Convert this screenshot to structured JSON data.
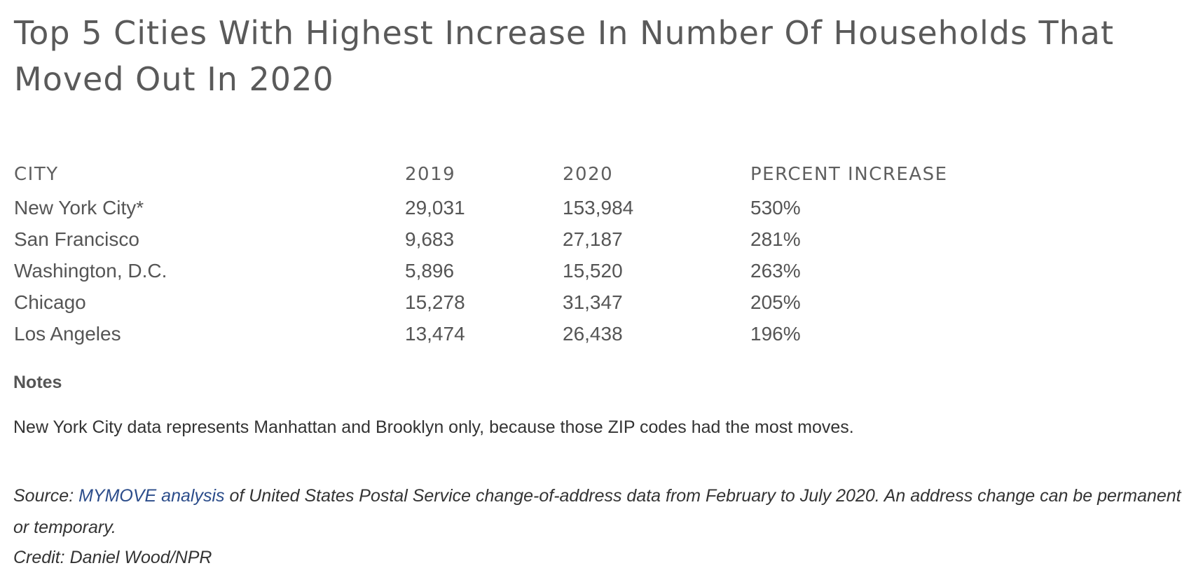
{
  "title": "Top 5 Cities With Highest Increase In Number Of Households That Moved Out In 2020",
  "table": {
    "headers": [
      "CITY",
      "2019",
      "2020",
      "PERCENT INCREASE"
    ],
    "rows": [
      [
        "New York City*",
        "29,031",
        "153,984",
        "530%"
      ],
      [
        "San Francisco",
        "9,683",
        "27,187",
        "281%"
      ],
      [
        "Washington, D.C.",
        "5,896",
        "15,520",
        "263%"
      ],
      [
        "Chicago",
        "15,278",
        "31,347",
        "205%"
      ],
      [
        "Los Angeles",
        "13,474",
        "26,438",
        "196%"
      ]
    ]
  },
  "notes": {
    "label": "Notes",
    "text": "New York City data represents Manhattan and Brooklyn only, because those ZIP codes had the most moves."
  },
  "source": {
    "prefix": "Source: ",
    "link_text": "MYMOVE analysis",
    "suffix": " of United States Postal Service change-of-address data from February to July 2020. An address change can be permanent or temporary."
  },
  "credit": "Credit: Daniel Wood/NPR",
  "colors": {
    "text": "#555555",
    "link": "#2b4c8a"
  }
}
